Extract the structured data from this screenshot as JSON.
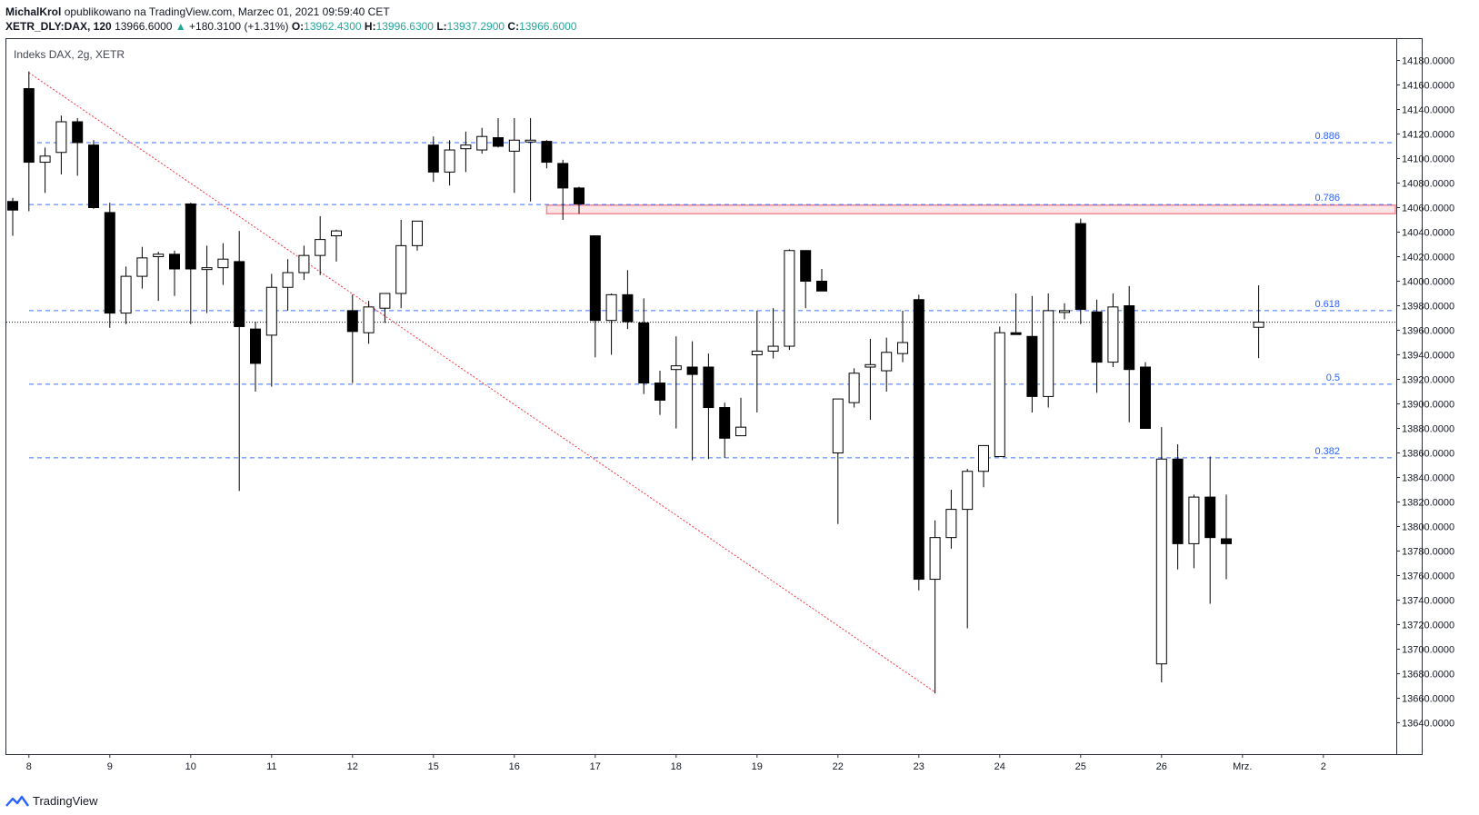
{
  "header": {
    "author": "MichalKrol",
    "published_text": "opublikowano na TradingView.com, Marzec 01, 2021 09:59:40 CET",
    "symbol": "XETR_DLY:DAX, 120",
    "last": "13966.6000",
    "change": "+180.3100 (+1.31%)",
    "o_label": "O:",
    "o_value": "13962.4300",
    "h_label": "H:",
    "h_value": "13996.6300",
    "l_label": "L:",
    "l_value": "13937.2900",
    "c_label": "C:",
    "c_value": "13966.6000"
  },
  "footer": {
    "brand": "TradingView"
  },
  "colors": {
    "up_text": "#26a69a",
    "fib_line": "#2962ff",
    "trend_line": "#f23645",
    "zone_fill": "#fde4e6",
    "zone_border": "#f28b96"
  },
  "chart_data": {
    "type": "candlestick",
    "title": "Indeks DAX, 2g, XETR",
    "ylim": [
      13635,
      14195
    ],
    "y_ticks": [
      "14180.0000",
      "14160.0000",
      "14140.0000",
      "14120.0000",
      "14100.0000",
      "14080.0000",
      "14060.0000",
      "14040.0000",
      "14020.0000",
      "14000.0000",
      "13980.0000",
      "13960.0000",
      "13940.0000",
      "13920.0000",
      "13900.0000",
      "13880.0000",
      "13860.0000",
      "13840.0000",
      "13820.0000",
      "13800.0000",
      "13780.0000",
      "13760.0000",
      "13740.0000",
      "13720.0000",
      "13700.0000",
      "13680.0000",
      "13660.0000",
      "13640.0000"
    ],
    "x_ticks": [
      {
        "label": "8",
        "index": 1
      },
      {
        "label": "9",
        "index": 6
      },
      {
        "label": "10",
        "index": 11
      },
      {
        "label": "11",
        "index": 16
      },
      {
        "label": "12",
        "index": 21
      },
      {
        "label": "15",
        "index": 26
      },
      {
        "label": "16",
        "index": 31
      },
      {
        "label": "17",
        "index": 36
      },
      {
        "label": "18",
        "index": 41
      },
      {
        "label": "19",
        "index": 46
      },
      {
        "label": "22",
        "index": 51
      },
      {
        "label": "23",
        "index": 56
      },
      {
        "label": "24",
        "index": 61
      },
      {
        "label": "25",
        "index": 66
      },
      {
        "label": "26",
        "index": 71
      },
      {
        "label": "Mrz.",
        "index": 76
      },
      {
        "label": "2",
        "index": 81
      }
    ],
    "candles": [
      {
        "o": 14065,
        "h": 14068,
        "l": 14037,
        "c": 14058
      },
      {
        "o": 14157,
        "h": 14171,
        "l": 14057,
        "c": 14097
      },
      {
        "o": 14097,
        "h": 14109,
        "l": 14072,
        "c": 14102
      },
      {
        "o": 14105,
        "h": 14135,
        "l": 14087,
        "c": 14130
      },
      {
        "o": 14130,
        "h": 14133,
        "l": 14086,
        "c": 14113
      },
      {
        "o": 14111,
        "h": 14115,
        "l": 14059,
        "c": 14060
      },
      {
        "o": 14056,
        "h": 14064,
        "l": 13962,
        "c": 13974
      },
      {
        "o": 13974,
        "h": 14012,
        "l": 13965,
        "c": 14004
      },
      {
        "o": 14004,
        "h": 14028,
        "l": 13994,
        "c": 14019
      },
      {
        "o": 14020,
        "h": 14024,
        "l": 13984,
        "c": 14022
      },
      {
        "o": 14022,
        "h": 14025,
        "l": 13988,
        "c": 14010
      },
      {
        "o": 14063,
        "h": 14064,
        "l": 13965,
        "c": 14010
      },
      {
        "o": 14010,
        "h": 14029,
        "l": 13974,
        "c": 14011
      },
      {
        "o": 14011,
        "h": 14031,
        "l": 13997,
        "c": 14018
      },
      {
        "o": 14016,
        "h": 14041,
        "l": 13829,
        "c": 13963
      },
      {
        "o": 13961,
        "h": 13967,
        "l": 13910,
        "c": 13933
      },
      {
        "o": 13956,
        "h": 14006,
        "l": 13914,
        "c": 13995
      },
      {
        "o": 13995,
        "h": 14018,
        "l": 13976,
        "c": 14007
      },
      {
        "o": 14007,
        "h": 14029,
        "l": 14001,
        "c": 14021
      },
      {
        "o": 14021,
        "h": 14053,
        "l": 14005,
        "c": 14034
      },
      {
        "o": 14037,
        "h": 14042,
        "l": 14016,
        "c": 14041
      },
      {
        "o": 13976,
        "h": 13989,
        "l": 13917,
        "c": 13959
      },
      {
        "o": 13958,
        "h": 13984,
        "l": 13949,
        "c": 13979
      },
      {
        "o": 13978,
        "h": 13987,
        "l": 13966,
        "c": 13990
      },
      {
        "o": 13990,
        "h": 14050,
        "l": 13978,
        "c": 14029
      },
      {
        "o": 14029,
        "h": 14049,
        "l": 14025,
        "c": 14049
      },
      {
        "o": 14111,
        "h": 14118,
        "l": 14081,
        "c": 14089
      },
      {
        "o": 14089,
        "h": 14115,
        "l": 14078,
        "c": 14107
      },
      {
        "o": 14108,
        "h": 14122,
        "l": 14089,
        "c": 14111
      },
      {
        "o": 14107,
        "h": 14125,
        "l": 14104,
        "c": 14118
      },
      {
        "o": 14117,
        "h": 14133,
        "l": 14109,
        "c": 14110
      },
      {
        "o": 14106,
        "h": 14133,
        "l": 14072,
        "c": 14115
      },
      {
        "o": 14115,
        "h": 14133,
        "l": 14065,
        "c": 14115
      },
      {
        "o": 14114,
        "h": 14115,
        "l": 14092,
        "c": 14097
      },
      {
        "o": 14096,
        "h": 14099,
        "l": 14050,
        "c": 14076
      },
      {
        "o": 14076,
        "h": 14077,
        "l": 14055,
        "c": 14063
      },
      {
        "o": 14037,
        "h": 14037,
        "l": 13938,
        "c": 13968
      },
      {
        "o": 13968,
        "h": 13990,
        "l": 13940,
        "c": 13989
      },
      {
        "o": 13989,
        "h": 14009,
        "l": 13961,
        "c": 13967
      },
      {
        "o": 13966,
        "h": 13986,
        "l": 13908,
        "c": 13917
      },
      {
        "o": 13917,
        "h": 13927,
        "l": 13891,
        "c": 13903
      },
      {
        "o": 13928,
        "h": 13955,
        "l": 13880,
        "c": 13931
      },
      {
        "o": 13930,
        "h": 13951,
        "l": 13854,
        "c": 13924
      },
      {
        "o": 13930,
        "h": 13941,
        "l": 13855,
        "c": 13897
      },
      {
        "o": 13897,
        "h": 13901,
        "l": 13856,
        "c": 13872
      },
      {
        "o": 13874,
        "h": 13905,
        "l": 13874,
        "c": 13881
      },
      {
        "o": 13940,
        "h": 13976,
        "l": 13893,
        "c": 13943
      },
      {
        "o": 13943,
        "h": 13978,
        "l": 13937,
        "c": 13947
      },
      {
        "o": 13947,
        "h": 14026,
        "l": 13944,
        "c": 14025
      },
      {
        "o": 14025,
        "h": 14025,
        "l": 13978,
        "c": 14000
      },
      {
        "o": 14000,
        "h": 14010,
        "l": 13994,
        "c": 13992
      },
      {
        "o": 13860,
        "h": 13903,
        "l": 13802,
        "c": 13904
      },
      {
        "o": 13901,
        "h": 13929,
        "l": 13897,
        "c": 13925
      },
      {
        "o": 13930,
        "h": 13953,
        "l": 13887,
        "c": 13932
      },
      {
        "o": 13927,
        "h": 13954,
        "l": 13910,
        "c": 13942
      },
      {
        "o": 13941,
        "h": 13976,
        "l": 13934,
        "c": 13950
      },
      {
        "o": 13985,
        "h": 13989,
        "l": 13748,
        "c": 13757
      },
      {
        "o": 13757,
        "h": 13805,
        "l": 13664,
        "c": 13791
      },
      {
        "o": 13791,
        "h": 13830,
        "l": 13782,
        "c": 13814
      },
      {
        "o": 13814,
        "h": 13847,
        "l": 13717,
        "c": 13845
      },
      {
        "o": 13845,
        "h": 13866,
        "l": 13832,
        "c": 13866
      },
      {
        "o": 13857,
        "h": 13963,
        "l": 13857,
        "c": 13958
      },
      {
        "o": 13958,
        "h": 13990,
        "l": 13957,
        "c": 13957
      },
      {
        "o": 13955,
        "h": 13988,
        "l": 13893,
        "c": 13906
      },
      {
        "o": 13906,
        "h": 13990,
        "l": 13897,
        "c": 13976
      },
      {
        "o": 13976,
        "h": 13982,
        "l": 13969,
        "c": 13976
      },
      {
        "o": 14047,
        "h": 14051,
        "l": 13965,
        "c": 13977
      },
      {
        "o": 13975,
        "h": 13985,
        "l": 13909,
        "c": 13934
      },
      {
        "o": 13934,
        "h": 13990,
        "l": 13930,
        "c": 13979
      },
      {
        "o": 13980,
        "h": 13996,
        "l": 13885,
        "c": 13928
      },
      {
        "o": 13930,
        "h": 13934,
        "l": 13882,
        "c": 13880
      },
      {
        "o": 13688,
        "h": 13881,
        "l": 13673,
        "c": 13855
      },
      {
        "o": 13855,
        "h": 13867,
        "l": 13765,
        "c": 13786
      },
      {
        "o": 13786,
        "h": 13826,
        "l": 13766,
        "c": 13824
      },
      {
        "o": 13824,
        "h": 13857,
        "l": 13737,
        "c": 13791
      },
      {
        "o": 13790,
        "h": 13826,
        "l": 13757,
        "c": 13786
      },
      null,
      {
        "o": 13962.43,
        "h": 13996.63,
        "l": 13937.29,
        "c": 13966.6
      }
    ],
    "fib_levels": [
      {
        "label": "0.886",
        "value": 14113
      },
      {
        "label": "0.786",
        "value": 14062.5
      },
      {
        "label": "0.618",
        "value": 13976
      },
      {
        "label": "0.5",
        "value": 13916
      },
      {
        "label": "0.382",
        "value": 13856
      }
    ],
    "current_price_line": 13966.6,
    "resistance_zone": {
      "from_index": 33,
      "to_index": 91,
      "low": 14055,
      "high": 14062
    },
    "trend_line": {
      "start_index": 1,
      "start_value": 14170,
      "end_index": 57,
      "end_value": 13665
    }
  }
}
